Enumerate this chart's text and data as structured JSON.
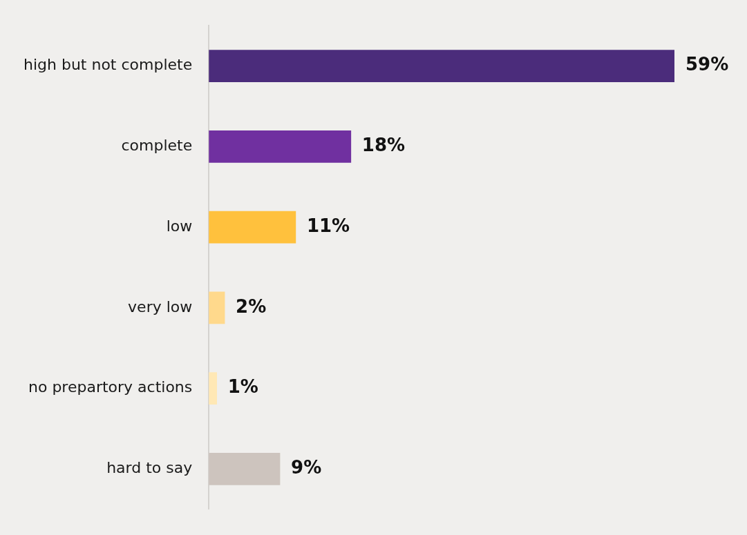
{
  "chart_data": {
    "type": "bar",
    "orientation": "horizontal",
    "categories": [
      "high but not complete",
      "complete",
      "low",
      "very low",
      "no prepartory actions",
      "hard to say"
    ],
    "values": [
      59,
      18,
      11,
      2,
      1,
      9
    ],
    "colors": [
      "#4b2c7b",
      "#7030a0",
      "#ffc13d",
      "#ffd98c",
      "#ffe8b5",
      "#cdc4be"
    ],
    "value_labels": [
      "59%",
      "18%",
      "11%",
      "2%",
      "1%",
      "9%"
    ],
    "legend": false
  }
}
